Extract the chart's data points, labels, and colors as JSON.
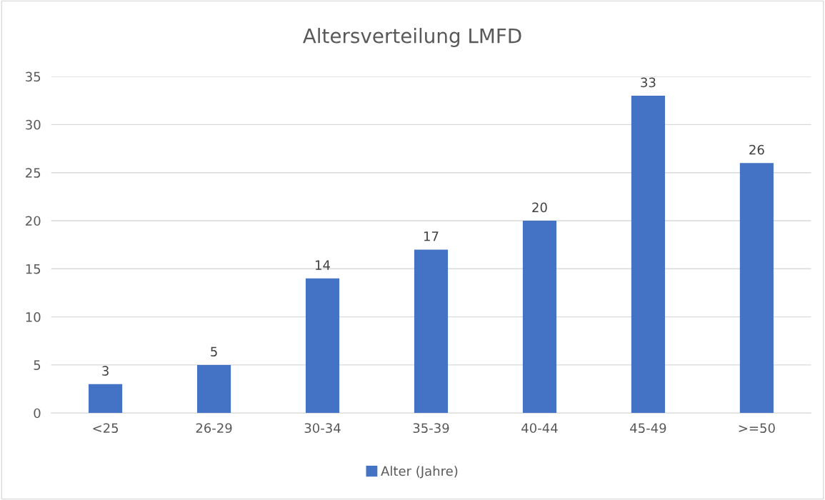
{
  "chart_data": {
    "type": "bar",
    "title": "Altersverteilung LMFD",
    "categories": [
      "<25",
      "26-29",
      "30-34",
      "35-39",
      "40-44",
      "45-49",
      ">=50"
    ],
    "series": [
      {
        "name": "Alter (Jahre)",
        "color": "#4472c4",
        "values": [
          3,
          5,
          14,
          17,
          20,
          33,
          26
        ]
      }
    ],
    "ylim": [
      0,
      35
    ],
    "yticks": [
      0,
      5,
      10,
      15,
      20,
      25,
      30,
      35
    ],
    "grid": "y",
    "legend": "bottom",
    "data_labels": true
  }
}
